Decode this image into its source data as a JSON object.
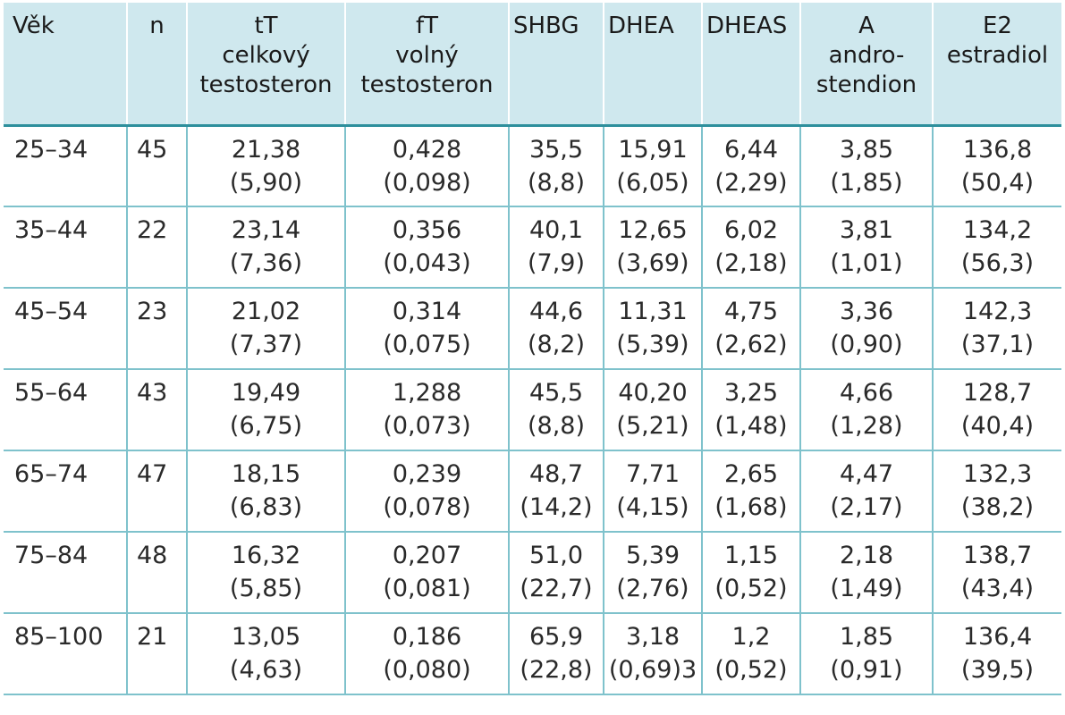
{
  "headers": [
    [
      "Věk"
    ],
    [
      "n"
    ],
    [
      "tT",
      "celkový",
      "testosteron"
    ],
    [
      "fT",
      "volný",
      "testosteron"
    ],
    [
      "SHBG"
    ],
    [
      "DHEA"
    ],
    [
      "DHEAS"
    ],
    [
      "A",
      "andro-",
      "stendion"
    ],
    [
      "E2",
      "estradiol"
    ]
  ],
  "rows": [
    {
      "age": "25–34",
      "n": "45",
      "tT": [
        "21,38",
        "(5,90)"
      ],
      "fT": [
        "0,428",
        "(0,098)"
      ],
      "SHBG": [
        "35,5",
        "(8,8)"
      ],
      "DHEA": [
        "15,91",
        "(6,05)"
      ],
      "DHEAS": [
        "6,44",
        "(2,29)"
      ],
      "A": [
        "3,85",
        "(1,85)"
      ],
      "E2": [
        "136,8",
        "(50,4)"
      ]
    },
    {
      "age": "35–44",
      "n": "22",
      "tT": [
        "23,14",
        "(7,36)"
      ],
      "fT": [
        "0,356",
        "(0,043)"
      ],
      "SHBG": [
        "40,1",
        "(7,9)"
      ],
      "DHEA": [
        "12,65",
        "(3,69)"
      ],
      "DHEAS": [
        "6,02",
        "(2,18)"
      ],
      "A": [
        "3,81",
        "(1,01)"
      ],
      "E2": [
        "134,2",
        "(56,3)"
      ]
    },
    {
      "age": "45–54",
      "n": "23",
      "tT": [
        "21,02",
        "(7,37)"
      ],
      "fT": [
        "0,314",
        "(0,075)"
      ],
      "SHBG": [
        "44,6",
        "(8,2)"
      ],
      "DHEA": [
        "11,31",
        "(5,39)"
      ],
      "DHEAS": [
        "4,75",
        "(2,62)"
      ],
      "A": [
        "3,36",
        "(0,90)"
      ],
      "E2": [
        "142,3",
        "(37,1)"
      ]
    },
    {
      "age": "55–64",
      "n": "43",
      "tT": [
        "19,49",
        "(6,75)"
      ],
      "fT": [
        "1,288",
        "(0,073)"
      ],
      "SHBG": [
        "45,5",
        "(8,8)"
      ],
      "DHEA": [
        "40,20",
        "(5,21)"
      ],
      "DHEAS": [
        "3,25",
        "(1,48)"
      ],
      "A": [
        "4,66",
        "(1,28)"
      ],
      "E2": [
        "128,7",
        "(40,4)"
      ]
    },
    {
      "age": "65–74",
      "n": "47",
      "tT": [
        "18,15",
        "(6,83)"
      ],
      "fT": [
        "0,239",
        "(0,078)"
      ],
      "SHBG": [
        "48,7",
        "(14,2)"
      ],
      "DHEA": [
        "7,71",
        "(4,15)"
      ],
      "DHEAS": [
        "2,65",
        "(1,68)"
      ],
      "A": [
        "4,47",
        "(2,17)"
      ],
      "E2": [
        "132,3",
        "(38,2)"
      ]
    },
    {
      "age": "75–84",
      "n": "48",
      "tT": [
        "16,32",
        "(5,85)"
      ],
      "fT": [
        "0,207",
        "(0,081)"
      ],
      "SHBG": [
        "51,0",
        "(22,7)"
      ],
      "DHEA": [
        "5,39",
        "(2,76)"
      ],
      "DHEAS": [
        "1,15",
        "(0,52)"
      ],
      "A": [
        "2,18",
        "(1,49)"
      ],
      "E2": [
        "138,7",
        "(43,4)"
      ]
    },
    {
      "age": "85–100",
      "n": "21",
      "tT": [
        "13,05",
        "(4,63)"
      ],
      "fT": [
        "0,186",
        "(0,080)"
      ],
      "SHBG": [
        "65,9",
        "(22,8)"
      ],
      "DHEA": [
        "3,18",
        "(0,69)3"
      ],
      "DHEAS": [
        "1,2",
        "(0,52)"
      ],
      "A": [
        "1,85",
        "(0,91)"
      ],
      "E2": [
        "136,4",
        "(39,5)"
      ]
    }
  ],
  "colors": {
    "header_bg": "#cfe8ee",
    "header_rule": "#2d8f9c",
    "grid_line": "#7fc2cc"
  }
}
